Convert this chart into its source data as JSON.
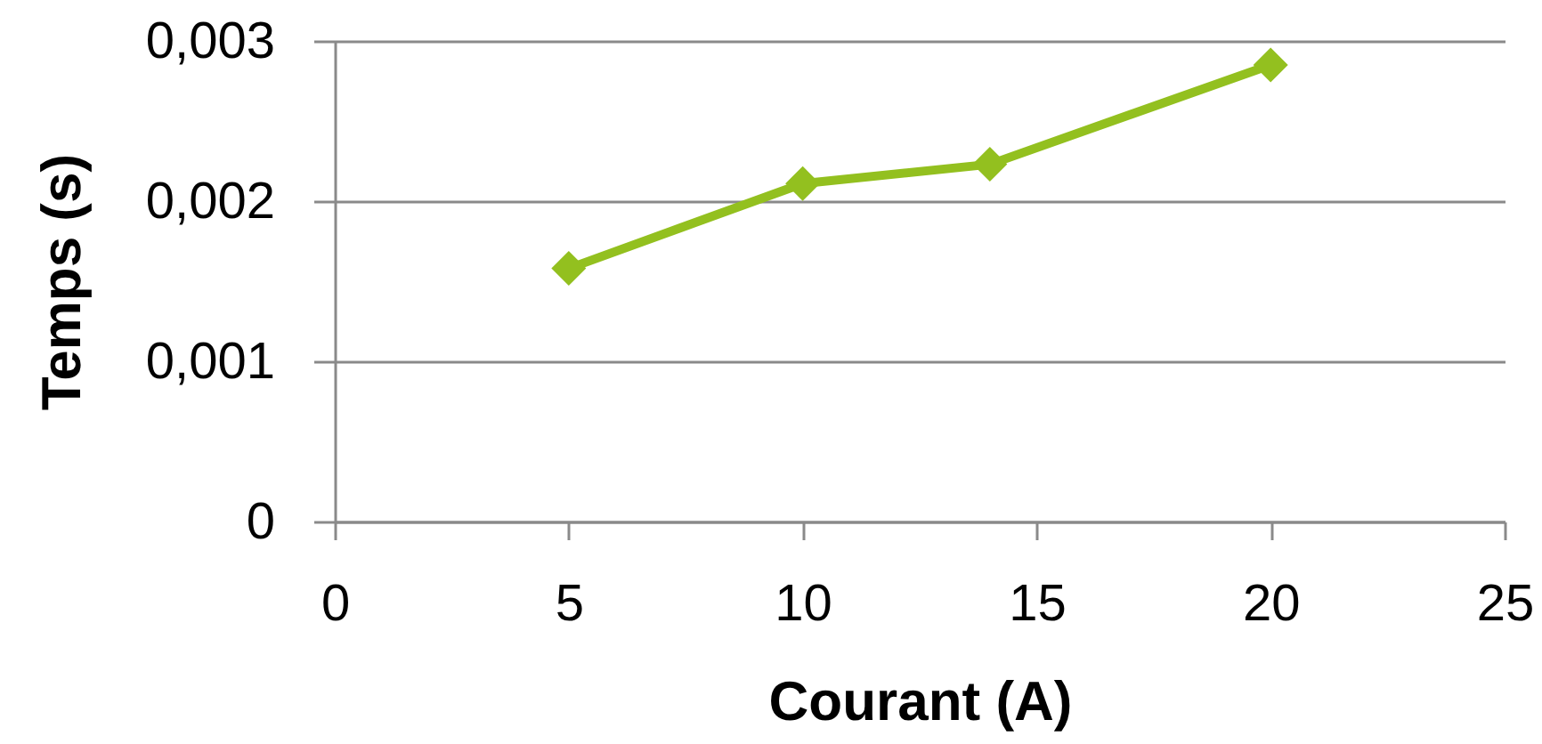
{
  "chart_data": {
    "type": "line",
    "xlabel": "Courant (A)",
    "ylabel": "Temps (s)",
    "x": [
      5,
      10,
      14,
      20
    ],
    "values": [
      0.00158,
      0.00211,
      0.00223,
      0.00285
    ],
    "color": "#93c01f",
    "xlim": [
      0,
      25
    ],
    "xticks": [
      0,
      5,
      10,
      15,
      20,
      25
    ],
    "ylim": [
      0,
      0.003
    ],
    "yticks": [
      0,
      {
        "value": 0.001,
        "label": "0,001"
      },
      {
        "value": 0.002,
        "label": "0,002"
      },
      {
        "value": 0.003,
        "label": "0,003"
      }
    ],
    "grid": "y",
    "marker": "diamond"
  }
}
